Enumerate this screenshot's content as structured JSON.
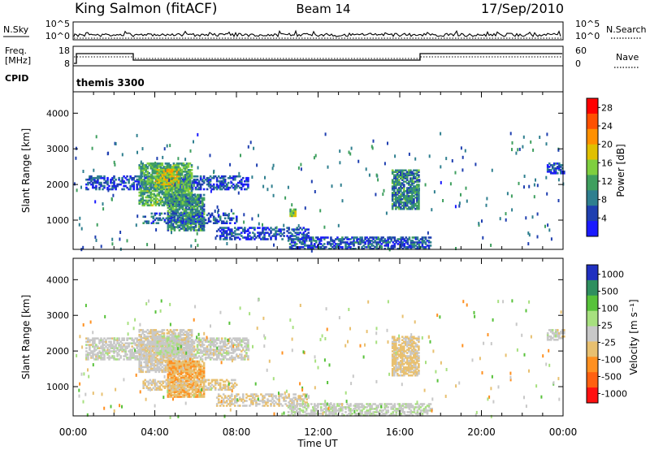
{
  "header": {
    "station": "King Salmon (fitACF)",
    "beam": "Beam 14",
    "date": "17/Sep/2010"
  },
  "nsky_panel": {
    "left_label": "N.Sky",
    "right_label": "N.Search",
    "ticks": [
      "10^5",
      "10^0"
    ]
  },
  "freq_panel": {
    "left_label_1": "Freq.",
    "left_label_2": "[MHz]",
    "left_ticks": [
      "18",
      "8"
    ],
    "right_label": "Nave",
    "right_ticks": [
      "60",
      "0"
    ]
  },
  "cpid": {
    "label": "CPID",
    "mode": "themis 3300"
  },
  "colors": {
    "power": [
      "#1a1aff",
      "#1f3fb0",
      "#2f7f8f",
      "#3f9f5f",
      "#7fcf3f",
      "#e0c000",
      "#ff9000",
      "#ff5000",
      "#ff0000"
    ],
    "velocity": [
      "#2030c0",
      "#2f8f5f",
      "#57c23a",
      "#a7e07f",
      "#c8c8c8",
      "#e8c070",
      "#ff9020",
      "#ff6010",
      "#ff1010"
    ],
    "ground_scatter": "#c0c0c0"
  },
  "chart_data": [
    {
      "type": "heatmap",
      "title": "Power",
      "xlabel": "",
      "ylabel": "Slant Range [km]",
      "xlim": [
        0,
        24
      ],
      "ylim": [
        180,
        4600
      ],
      "xticks": [
        "00:00",
        "04:00",
        "08:00",
        "12:00",
        "16:00",
        "20:00",
        "00:00"
      ],
      "yticks": [
        1000,
        2000,
        3000,
        4000
      ],
      "colorbar": {
        "label": "Power [dB]",
        "ticks": [
          "4",
          "8",
          "12",
          "16",
          "20",
          "24",
          "28"
        ],
        "range": [
          0,
          30
        ]
      },
      "clusters": [
        {
          "t": [
            0.6,
            8.6
          ],
          "r": [
            1850,
            2250
          ],
          "level": 5,
          "density": 0.55
        },
        {
          "t": [
            3.2,
            5.8
          ],
          "r": [
            1400,
            2600
          ],
          "level": 12,
          "density": 0.75
        },
        {
          "t": [
            4.0,
            5.2
          ],
          "r": [
            1900,
            2400
          ],
          "level": 17,
          "density": 0.7
        },
        {
          "t": [
            4.6,
            6.4
          ],
          "r": [
            700,
            1700
          ],
          "level": 10,
          "density": 0.8
        },
        {
          "t": [
            3.4,
            8.0
          ],
          "r": [
            900,
            1200
          ],
          "level": 6,
          "density": 0.45
        },
        {
          "t": [
            7.0,
            11.5
          ],
          "r": [
            450,
            800
          ],
          "level": 5,
          "density": 0.5
        },
        {
          "t": [
            10.5,
            17.5
          ],
          "r": [
            180,
            500
          ],
          "level": 6,
          "density": 0.6
        },
        {
          "t": [
            15.6,
            16.9
          ],
          "r": [
            1300,
            2400
          ],
          "level": 9,
          "density": 0.75
        },
        {
          "t": [
            10.6,
            10.9
          ],
          "r": [
            1100,
            1300
          ],
          "level": 14,
          "density": 0.9
        },
        {
          "t": [
            23.2,
            24.0
          ],
          "r": [
            2300,
            2600
          ],
          "level": 5,
          "density": 0.6
        }
      ]
    },
    {
      "type": "heatmap",
      "title": "Velocity",
      "xlabel": "Time UT",
      "ylabel": "Slant Range [km]",
      "xlim": [
        0,
        24
      ],
      "ylim": [
        180,
        4600
      ],
      "xticks": [
        "00:00",
        "04:00",
        "08:00",
        "12:00",
        "16:00",
        "20:00",
        "00:00"
      ],
      "yticks": [
        1000,
        2000,
        3000,
        4000
      ],
      "colorbar": {
        "label": "Velocity [m s⁻¹]",
        "ticks": [
          "1000",
          "500",
          "100",
          "25",
          "-25",
          "-100",
          "-500",
          "-1000"
        ],
        "range": [
          -1500,
          1500
        ]
      },
      "clusters": [
        {
          "t": [
            0.6,
            8.6
          ],
          "r": [
            1750,
            2350
          ],
          "value": 0,
          "density": 0.6
        },
        {
          "t": [
            3.2,
            5.8
          ],
          "r": [
            1400,
            2600
          ],
          "value": -60,
          "density": 0.7
        },
        {
          "t": [
            4.0,
            5.2
          ],
          "r": [
            1900,
            2400
          ],
          "value": 150,
          "density": 0.55
        },
        {
          "t": [
            4.6,
            6.4
          ],
          "r": [
            700,
            1700
          ],
          "value": -450,
          "density": 0.8
        },
        {
          "t": [
            3.4,
            8.0
          ],
          "r": [
            900,
            1200
          ],
          "value": -200,
          "density": 0.45
        },
        {
          "t": [
            7.0,
            11.5
          ],
          "r": [
            450,
            800
          ],
          "value": -150,
          "density": 0.5
        },
        {
          "t": [
            10.5,
            17.5
          ],
          "r": [
            180,
            500
          ],
          "value": 60,
          "density": 0.6
        },
        {
          "t": [
            15.6,
            16.9
          ],
          "r": [
            1300,
            2400
          ],
          "value": -250,
          "density": 0.75
        },
        {
          "t": [
            23.2,
            24.0
          ],
          "r": [
            2300,
            2600
          ],
          "value": 0,
          "density": 0.6
        }
      ]
    }
  ]
}
